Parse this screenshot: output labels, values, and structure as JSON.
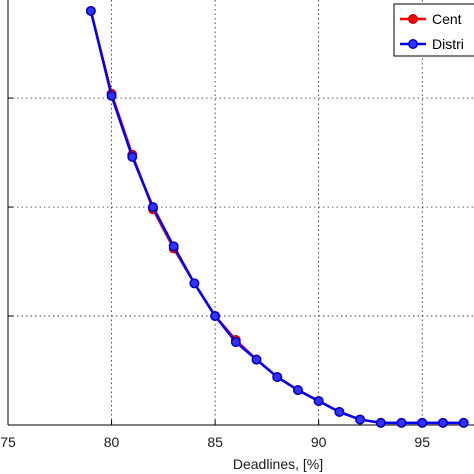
{
  "chart_data": {
    "type": "line",
    "title": "",
    "xlabel": "Deadlines, [%]",
    "ylabel": "",
    "xlim": [
      75,
      97.5
    ],
    "ylim": [
      0,
      1.95
    ],
    "x_ticks": [
      75,
      80,
      85,
      90,
      95
    ],
    "x_tick_labels": [
      "75",
      "80",
      "85",
      "90",
      "95"
    ],
    "y_gridlines": [
      0.5,
      1.0,
      1.5
    ],
    "grid": true,
    "legend_position": "top-right",
    "x": [
      79,
      80,
      81,
      82,
      83,
      84,
      85,
      86,
      87,
      88,
      89,
      90,
      91,
      92,
      93,
      94,
      95,
      96,
      97
    ],
    "series": [
      {
        "name": "Cent",
        "color": "#ff0000",
        "values": [
          1.9,
          1.52,
          1.24,
          0.99,
          0.81,
          0.65,
          0.5,
          0.39,
          0.3,
          0.22,
          0.16,
          0.11,
          0.06,
          0.025,
          0.01,
          0.01,
          0.01,
          0.01,
          0.01
        ]
      },
      {
        "name": "Distri",
        "color": "#0000ff",
        "values": [
          1.9,
          1.51,
          1.23,
          1.0,
          0.82,
          0.65,
          0.5,
          0.38,
          0.3,
          0.22,
          0.16,
          0.11,
          0.06,
          0.025,
          0.01,
          0.01,
          0.01,
          0.01,
          0.01
        ]
      }
    ]
  }
}
